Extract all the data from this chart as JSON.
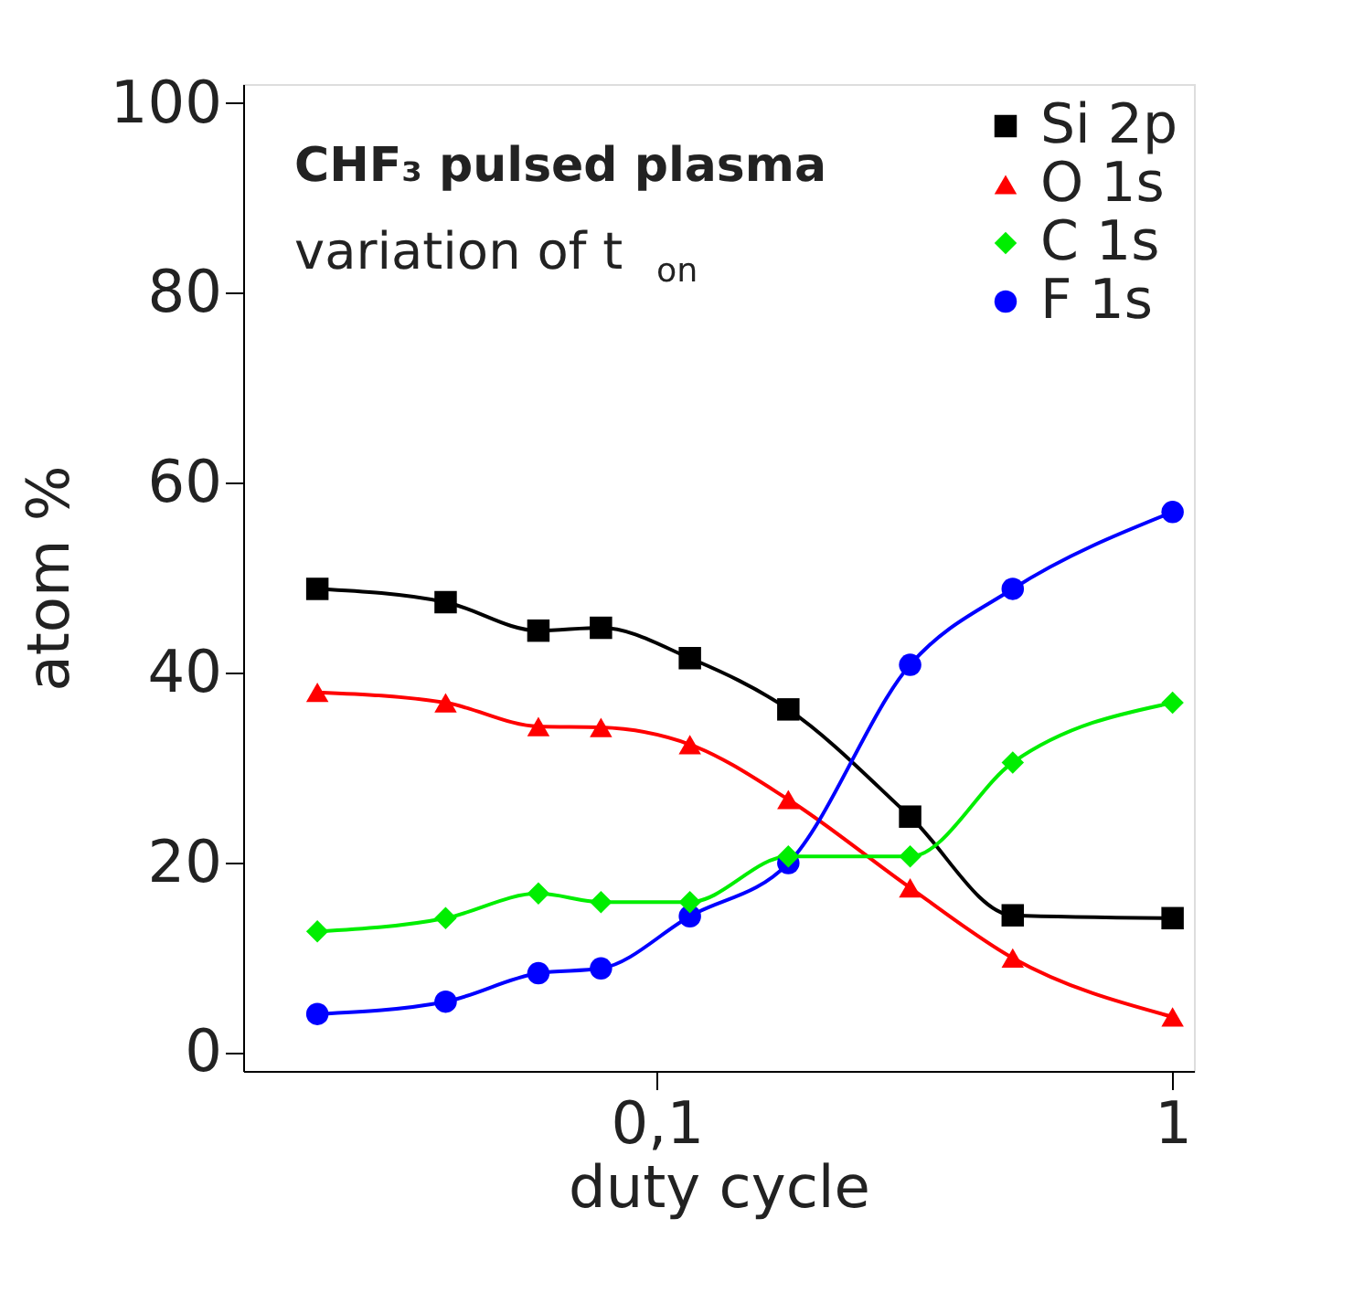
{
  "chart_data": {
    "type": "line",
    "xlabel": "duty cycle",
    "ylabel": "atom %",
    "annotations": [
      "CHF₃ pulsed plasma",
      "variation of t$_{on}$"
    ],
    "x": [
      0.022,
      0.039,
      0.059,
      0.078,
      0.116,
      0.18,
      0.31,
      0.49,
      1.0
    ],
    "series": [
      {
        "name": "Si 2p",
        "color": "#000000",
        "marker": "square",
        "values": [
          48.8,
          47.4,
          44.4,
          44.7,
          41.5,
          36.1,
          24.8,
          14.4,
          14.1
        ]
      },
      {
        "name": "O 1s",
        "color": "#ff0000",
        "marker": "triangle",
        "values": [
          37.9,
          36.8,
          34.3,
          34.2,
          32.4,
          26.6,
          17.3,
          9.9,
          3.7
        ]
      },
      {
        "name": "C 1s",
        "color": "#00ee00",
        "marker": "diamond",
        "values": [
          12.7,
          14.1,
          16.7,
          15.8,
          15.8,
          20.6,
          20.6,
          30.5,
          36.8
        ]
      },
      {
        "name": "F 1s",
        "color": "#0000ff",
        "marker": "circle",
        "values": [
          4.0,
          5.3,
          8.3,
          8.8,
          14.3,
          19.9,
          40.8,
          48.8,
          56.9
        ]
      }
    ],
    "log": "x",
    "xlim": [
      0.0158,
      1.1
    ],
    "xticks": [
      {
        "value": 0.1,
        "label": "0,1"
      },
      1
    ],
    "ylim": [
      -2,
      102
    ],
    "yticks": [
      0,
      20,
      40,
      60,
      80,
      100
    ],
    "grid": false,
    "legend": "top right",
    "line_style": "solid"
  }
}
